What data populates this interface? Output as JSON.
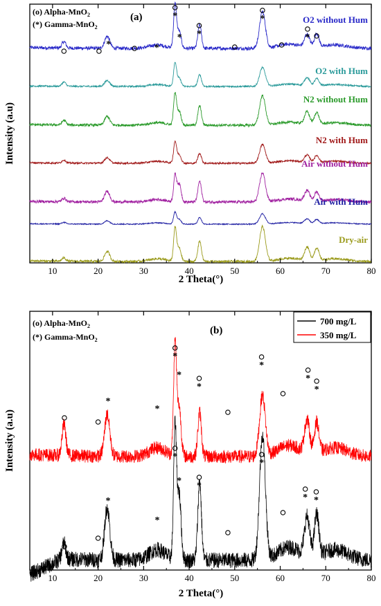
{
  "chart_data": [
    {
      "type": "line",
      "panel_label": "(a)",
      "xlabel": "2 Theta(°)",
      "ylabel": "Intensity (a.u)",
      "xlim": [
        5,
        80
      ],
      "xticks": [
        10,
        20,
        30,
        40,
        50,
        60,
        70,
        80
      ],
      "legend_phase": [
        "(o) Alpha-MnO2",
        "(*) Gamma-MnO2"
      ],
      "peaks_2theta": [
        12.5,
        22.0,
        36.9,
        37.8,
        42.3,
        56.1,
        65.9,
        68.0
      ],
      "series": [
        {
          "name": "O2 without Hum",
          "color": "#2828c8",
          "peak_heights": [
            0.15,
            0.28,
            1.0,
            0.4,
            0.55,
            0.85,
            0.3,
            0.32
          ],
          "noise": 0.04
        },
        {
          "name": "O2 with Hum",
          "color": "#2a9a9a",
          "peak_heights": [
            0.18,
            0.25,
            1.0,
            0.35,
            0.5,
            0.8,
            0.35,
            0.3
          ],
          "noise": 0.035
        },
        {
          "name": "N2 without Hum",
          "color": "#2a9a2a",
          "peak_heights": [
            0.15,
            0.28,
            1.0,
            0.45,
            0.62,
            0.95,
            0.4,
            0.38
          ],
          "noise": 0.04
        },
        {
          "name": "N2 with Hum",
          "color": "#a01818",
          "peak_heights": [
            0.12,
            0.22,
            0.85,
            0.35,
            0.4,
            0.75,
            0.3,
            0.28
          ],
          "noise": 0.035
        },
        {
          "name": "Air without Hum",
          "color": "#a020a0",
          "peak_heights": [
            0.12,
            0.35,
            0.85,
            0.6,
            0.68,
            0.95,
            0.35,
            0.3
          ],
          "noise": 0.045
        },
        {
          "name": "Air with Hum",
          "color": "#1a1aa0",
          "peak_heights": [
            0.1,
            0.2,
            0.7,
            0.3,
            0.4,
            0.62,
            0.28,
            0.25
          ],
          "noise": 0.03
        },
        {
          "name": "Dry-air",
          "color": "#9a9a1a",
          "peak_heights": [
            0.1,
            0.3,
            1.0,
            0.4,
            0.62,
            1.05,
            0.4,
            0.38
          ],
          "noise": 0.035
        }
      ],
      "peak_markers": [
        {
          "x": 12.5,
          "symbol": "o"
        },
        {
          "x": 20.2,
          "symbol": "o"
        },
        {
          "x": 22.3,
          "symbol": "*"
        },
        {
          "x": 28.0,
          "symbol": "o"
        },
        {
          "x": 32.9,
          "symbol": "*"
        },
        {
          "x": 36.9,
          "symbol": "o*"
        },
        {
          "x": 37.9,
          "symbol": "*"
        },
        {
          "x": 42.2,
          "symbol": "o*"
        },
        {
          "x": 50.0,
          "symbol": "o"
        },
        {
          "x": 56.1,
          "symbol": "o*"
        },
        {
          "x": 60.3,
          "symbol": "o"
        },
        {
          "x": 66.0,
          "symbol": "o*"
        },
        {
          "x": 68.0,
          "symbol": "o"
        }
      ]
    },
    {
      "type": "line",
      "panel_label": "(b)",
      "xlabel": "2 Theta(°)",
      "ylabel": "Intensity (a.u)",
      "xlim": [
        5,
        80
      ],
      "xticks": [
        10,
        20,
        30,
        40,
        50,
        60,
        70,
        80
      ],
      "legend_phase": [
        "(o) Alpha-MnO2",
        "(*) Gamma-MnO2"
      ],
      "legend": "top-right",
      "series": [
        {
          "name": "700 mg/L",
          "color": "#000000",
          "peak_heights": [
            0.12,
            0.4,
            1.0,
            0.5,
            0.6,
            0.95,
            0.3,
            0.32
          ],
          "noise": 0.05
        },
        {
          "name": "350 mg/L",
          "color": "#ff0000",
          "peak_heights": [
            0.28,
            0.38,
            1.0,
            0.45,
            0.4,
            0.55,
            0.3,
            0.28
          ],
          "noise": 0.05
        }
      ],
      "peak_markers_top": [
        {
          "x": 12.6,
          "symbol": "o"
        },
        {
          "x": 20.0,
          "symbol": "o"
        },
        {
          "x": 22.2,
          "symbol": "*"
        },
        {
          "x": 33.0,
          "symbol": "*"
        },
        {
          "x": 36.9,
          "symbol": "o*"
        },
        {
          "x": 37.8,
          "symbol": "*"
        },
        {
          "x": 42.2,
          "symbol": "o*"
        },
        {
          "x": 48.5,
          "symbol": "o"
        },
        {
          "x": 55.9,
          "symbol": "o*"
        },
        {
          "x": 60.6,
          "symbol": "o"
        },
        {
          "x": 66.1,
          "symbol": "o*"
        },
        {
          "x": 68.0,
          "symbol": "o*"
        }
      ],
      "peak_markers_bottom": [
        {
          "x": 12.6,
          "symbol": "o"
        },
        {
          "x": 20.0,
          "symbol": "o"
        },
        {
          "x": 22.2,
          "symbol": "*"
        },
        {
          "x": 33.0,
          "symbol": "*"
        },
        {
          "x": 36.9,
          "symbol": "o*"
        },
        {
          "x": 37.8,
          "symbol": "*"
        },
        {
          "x": 42.2,
          "symbol": "o*"
        },
        {
          "x": 48.5,
          "symbol": "o"
        },
        {
          "x": 55.9,
          "symbol": "o*"
        },
        {
          "x": 60.6,
          "symbol": "o"
        },
        {
          "x": 65.5,
          "symbol": "o*"
        },
        {
          "x": 67.9,
          "symbol": "o*"
        }
      ]
    }
  ]
}
